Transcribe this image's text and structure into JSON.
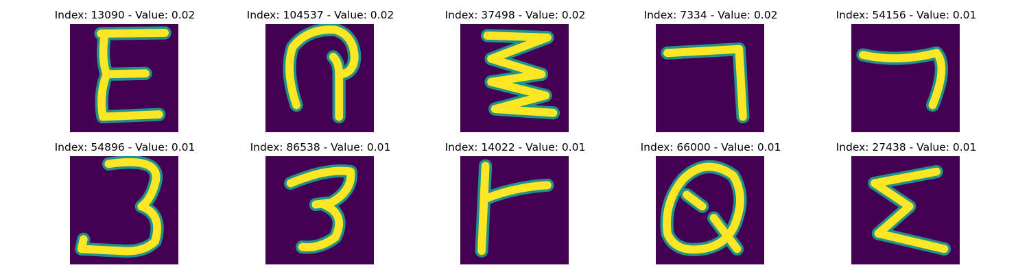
{
  "colors": {
    "background": "#440154",
    "edge": "#21918c",
    "fill": "#fde725"
  },
  "panels": [
    {
      "title": "Index: 13090 - Value: 0.02",
      "glyph": "E"
    },
    {
      "title": "Index: 104537 - Value: 0.02",
      "glyph": "arch-with-stem"
    },
    {
      "title": "Index: 37498 - Value: 0.02",
      "glyph": "zigzag"
    },
    {
      "title": "Index: 7334 - Value: 0.02",
      "glyph": "seven"
    },
    {
      "title": "Index: 54156 - Value: 0.01",
      "glyph": "seven-curved"
    },
    {
      "title": "Index: 54896 - Value: 0.01",
      "glyph": "three"
    },
    {
      "title": "Index: 86538 - Value: 0.01",
      "glyph": "three-small"
    },
    {
      "title": "Index: 14022 - Value: 0.01",
      "glyph": "F-lower"
    },
    {
      "title": "Index: 66000 - Value: 0.01",
      "glyph": "Q"
    },
    {
      "title": "Index: 27438 - Value: 0.01",
      "glyph": "sigma"
    }
  ]
}
